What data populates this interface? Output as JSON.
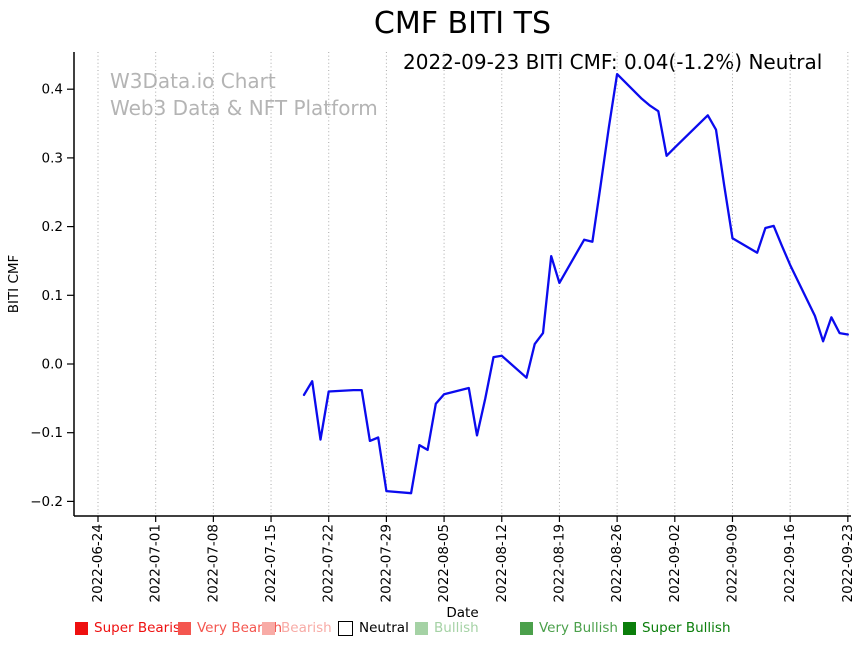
{
  "page_title": "CMF BITI TS",
  "watermark": {
    "line1": "W3Data.io Chart",
    "line2": "Web3 Data & NFT Platform"
  },
  "legend": {
    "items": [
      {
        "label": "Super Bearish",
        "color": "#ee1010",
        "text_color": "#ee1010"
      },
      {
        "label": "Very Bearish",
        "color": "#f4564f",
        "text_color": "#f4564f"
      },
      {
        "label": "Bearish",
        "color": "#f8aba6",
        "text_color": "#f8aba6"
      },
      {
        "label": "Neutral",
        "color": "#ffffff",
        "border": "#000000",
        "text_color": "#000000"
      },
      {
        "label": "Bullish",
        "color": "#a5d2a5",
        "text_color": "#a5d2a5"
      },
      {
        "label": "Very Bullish",
        "color": "#4ba04b",
        "text_color": "#4ba04b"
      },
      {
        "label": "Super Bullish",
        "color": "#0b7e0b",
        "text_color": "#0b7e0b"
      }
    ]
  },
  "chart_data": {
    "type": "line",
    "title": "CMF BITI TS",
    "annotation": "2022-09-23 BITI CMF: 0.04(-1.2%) Neutral",
    "xlabel": "Date",
    "ylabel": "BITI CMF",
    "ylim": [
      -0.22,
      0.45
    ],
    "grid": "vertical-dotted",
    "legend_position": "bottom",
    "line_color": "#0b0bee",
    "x_tick_labels": [
      "2022-06-24",
      "2022-07-01",
      "2022-07-08",
      "2022-07-15",
      "2022-07-22",
      "2022-07-29",
      "2022-08-05",
      "2022-08-12",
      "2022-08-19",
      "2022-08-26",
      "2022-09-02",
      "2022-09-09",
      "2022-09-16",
      "2022-09-23"
    ],
    "y_ticks": [
      0.4,
      0.3,
      0.2,
      0.1,
      0.0,
      -0.1,
      -0.2
    ],
    "y_tick_labels": [
      "0.4",
      "0.3",
      "0.2",
      "0.1",
      "0.0",
      "−0.1",
      "−0.2"
    ],
    "series": [
      {
        "name": "BITI CMF",
        "x": [
          "2022-07-19",
          "2022-07-20",
          "2022-07-21",
          "2022-07-22",
          "2022-07-25",
          "2022-07-26",
          "2022-07-27",
          "2022-07-28",
          "2022-07-29",
          "2022-08-01",
          "2022-08-02",
          "2022-08-03",
          "2022-08-04",
          "2022-08-05",
          "2022-08-08",
          "2022-08-09",
          "2022-08-10",
          "2022-08-11",
          "2022-08-12",
          "2022-08-15",
          "2022-08-16",
          "2022-08-17",
          "2022-08-18",
          "2022-08-19",
          "2022-08-22",
          "2022-08-23",
          "2022-08-24",
          "2022-08-25",
          "2022-08-26",
          "2022-08-29",
          "2022-08-30",
          "2022-08-31",
          "2022-09-01",
          "2022-09-02",
          "2022-09-06",
          "2022-09-07",
          "2022-09-08",
          "2022-09-09",
          "2022-09-12",
          "2022-09-13",
          "2022-09-14",
          "2022-09-15",
          "2022-09-16",
          "2022-09-19",
          "2022-09-20",
          "2022-09-21",
          "2022-09-22",
          "2022-09-23"
        ],
        "values": [
          -0.045,
          -0.025,
          -0.11,
          -0.04,
          -0.038,
          -0.038,
          -0.112,
          -0.107,
          -0.185,
          -0.188,
          -0.118,
          -0.125,
          -0.058,
          -0.044,
          -0.035,
          -0.104,
          -0.05,
          0.01,
          0.012,
          -0.02,
          0.029,
          0.045,
          0.157,
          0.118,
          0.181,
          0.178,
          0.26,
          0.345,
          0.422,
          0.386,
          0.376,
          0.368,
          0.303,
          0.315,
          0.362,
          0.341,
          0.26,
          0.183,
          0.162,
          0.198,
          0.201,
          0.172,
          0.144,
          0.07,
          0.033,
          0.068,
          0.045,
          0.043
        ]
      }
    ]
  }
}
